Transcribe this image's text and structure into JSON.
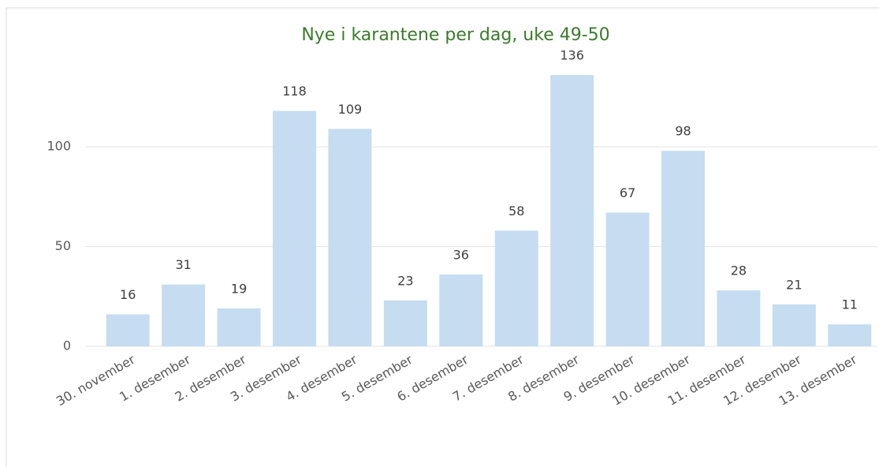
{
  "chart_data": {
    "type": "bar",
    "title": "Nye i karantene per dag, uke 49-50",
    "categories": [
      "30. november",
      "1. desember",
      "2. desember",
      "3. desember",
      "4. desember",
      "5. desember",
      "6. desember",
      "7. desember",
      "8. desember",
      "9. desember",
      "10. desember",
      "11. desember",
      "12. desember",
      "13. desember"
    ],
    "values": [
      16,
      31,
      19,
      118,
      109,
      23,
      36,
      58,
      136,
      67,
      98,
      28,
      21,
      11
    ],
    "color": "#c5dcf1",
    "ylim": [
      0,
      140
    ],
    "yticks": [
      0,
      50,
      100
    ],
    "grid": true
  }
}
